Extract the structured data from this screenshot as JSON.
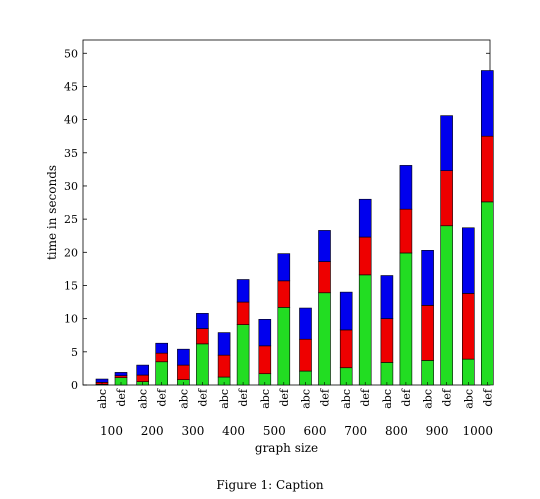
{
  "chart_data": {
    "type": "bar",
    "stacked": true,
    "ylabel": "time in seconds",
    "xlabel": "graph size",
    "ylim": [
      0,
      52
    ],
    "yticks": [
      0,
      5,
      10,
      15,
      20,
      25,
      30,
      35,
      40,
      45,
      50
    ],
    "groups": [
      "100",
      "200",
      "300",
      "400",
      "500",
      "600",
      "700",
      "800",
      "900",
      "1000"
    ],
    "subcategories": [
      "abc",
      "def"
    ],
    "stack_colors": [
      "#22dd22",
      "#ee0000",
      "#0000ee"
    ],
    "bars": [
      {
        "group": "100",
        "sub": "abc",
        "segments": [
          0.1,
          0.3,
          0.5
        ]
      },
      {
        "group": "100",
        "sub": "def",
        "segments": [
          1.1,
          0.3,
          0.5
        ]
      },
      {
        "group": "200",
        "sub": "abc",
        "segments": [
          0.5,
          1.0,
          1.5
        ]
      },
      {
        "group": "200",
        "sub": "def",
        "segments": [
          3.5,
          1.3,
          1.5
        ]
      },
      {
        "group": "300",
        "sub": "abc",
        "segments": [
          0.8,
          2.2,
          2.4
        ]
      },
      {
        "group": "300",
        "sub": "def",
        "segments": [
          6.2,
          2.3,
          2.3
        ]
      },
      {
        "group": "400",
        "sub": "abc",
        "segments": [
          1.2,
          3.3,
          3.4
        ]
      },
      {
        "group": "400",
        "sub": "def",
        "segments": [
          9.1,
          3.4,
          3.4
        ]
      },
      {
        "group": "500",
        "sub": "abc",
        "segments": [
          1.7,
          4.2,
          4.0
        ]
      },
      {
        "group": "500",
        "sub": "def",
        "segments": [
          11.7,
          4.0,
          4.1
        ]
      },
      {
        "group": "600",
        "sub": "abc",
        "segments": [
          2.1,
          4.8,
          4.7
        ]
      },
      {
        "group": "600",
        "sub": "def",
        "segments": [
          13.9,
          4.7,
          4.7
        ]
      },
      {
        "group": "700",
        "sub": "abc",
        "segments": [
          2.6,
          5.7,
          5.7
        ]
      },
      {
        "group": "700",
        "sub": "def",
        "segments": [
          16.6,
          5.7,
          5.7
        ]
      },
      {
        "group": "800",
        "sub": "abc",
        "segments": [
          3.4,
          6.6,
          6.5
        ]
      },
      {
        "group": "800",
        "sub": "def",
        "segments": [
          19.9,
          6.6,
          6.6
        ]
      },
      {
        "group": "900",
        "sub": "abc",
        "segments": [
          3.7,
          8.3,
          8.3
        ]
      },
      {
        "group": "900",
        "sub": "def",
        "segments": [
          24.0,
          8.3,
          8.3
        ]
      },
      {
        "group": "1000",
        "sub": "abc",
        "segments": [
          3.9,
          9.9,
          9.9
        ]
      },
      {
        "group": "1000",
        "sub": "def",
        "segments": [
          27.6,
          9.9,
          9.9
        ]
      }
    ],
    "caption": "Figure 1: Caption"
  }
}
